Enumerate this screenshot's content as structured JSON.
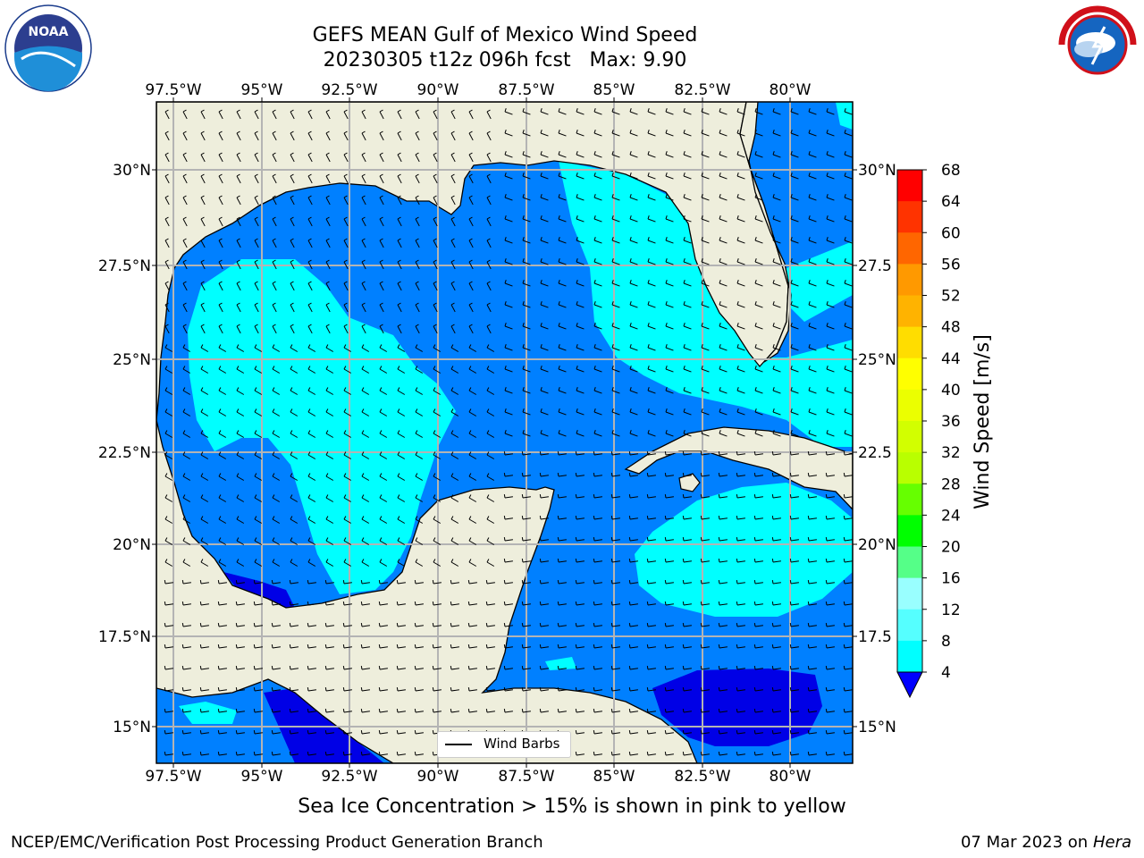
{
  "title": {
    "line1": "GEFS MEAN Gulf of Mexico Wind Speed",
    "line2": "20230305 t12z 096h fcst   Max: 9.90"
  },
  "logos": {
    "left": "noaa-logo",
    "right": "national-weather-service-logo",
    "noaa_text": "NOAA",
    "noaa_ring_text": "NATIONAL OCEANIC AND ATMOSPHERIC ADMINISTRATION",
    "noaa_bottom_text": "U.S. DEPARTMENT OF COMMERCE",
    "nws_ring_text": "NATIONAL WEATHER SERVICE"
  },
  "map": {
    "lon_ticks": [
      "97.5°W",
      "95°W",
      "92.5°W",
      "90°W",
      "87.5°W",
      "85°W",
      "82.5°W",
      "80°W"
    ],
    "lat_ticks_left": [
      "30°N",
      "27.5°N",
      "25°N",
      "22.5°N",
      "20°N",
      "17.5°N",
      "15°N"
    ],
    "lat_ticks_right": [
      "30°N",
      "27.5",
      "25°N",
      "22.5",
      "20°N",
      "17.5",
      "15°N"
    ],
    "legend_label": "Wind Barbs",
    "colors": {
      "land": "#eeeedc",
      "ws_4_8": "#0080ff",
      "ws_8_12": "#00ffff",
      "ws_0_4": "#0000e6",
      "grid": "#b4b4b4"
    }
  },
  "colorbar": {
    "label": "Wind Speed [m/s]",
    "ticks": [
      "68",
      "64",
      "60",
      "56",
      "52",
      "48",
      "44",
      "40",
      "36",
      "32",
      "28",
      "24",
      "20",
      "16",
      "12",
      "8",
      "4"
    ],
    "colors": [
      "#ff0000",
      "#ff3300",
      "#ff6600",
      "#ff9900",
      "#ffb300",
      "#ffdd00",
      "#ffff00",
      "#ebff00",
      "#d2ff00",
      "#b9ff00",
      "#66ff00",
      "#00ff00",
      "#55ff88",
      "#99ffff",
      "#55ffff",
      "#00ffff",
      "#0080ff",
      "#0000ff"
    ]
  },
  "footer": {
    "note": "Sea Ice Concentration > 15% is shown in pink to yellow",
    "credit_left": "NCEP/EMC/Verification Post Processing Product Generation Branch",
    "credit_date": "07 Mar 2023 on",
    "credit_machine": "Hera"
  }
}
